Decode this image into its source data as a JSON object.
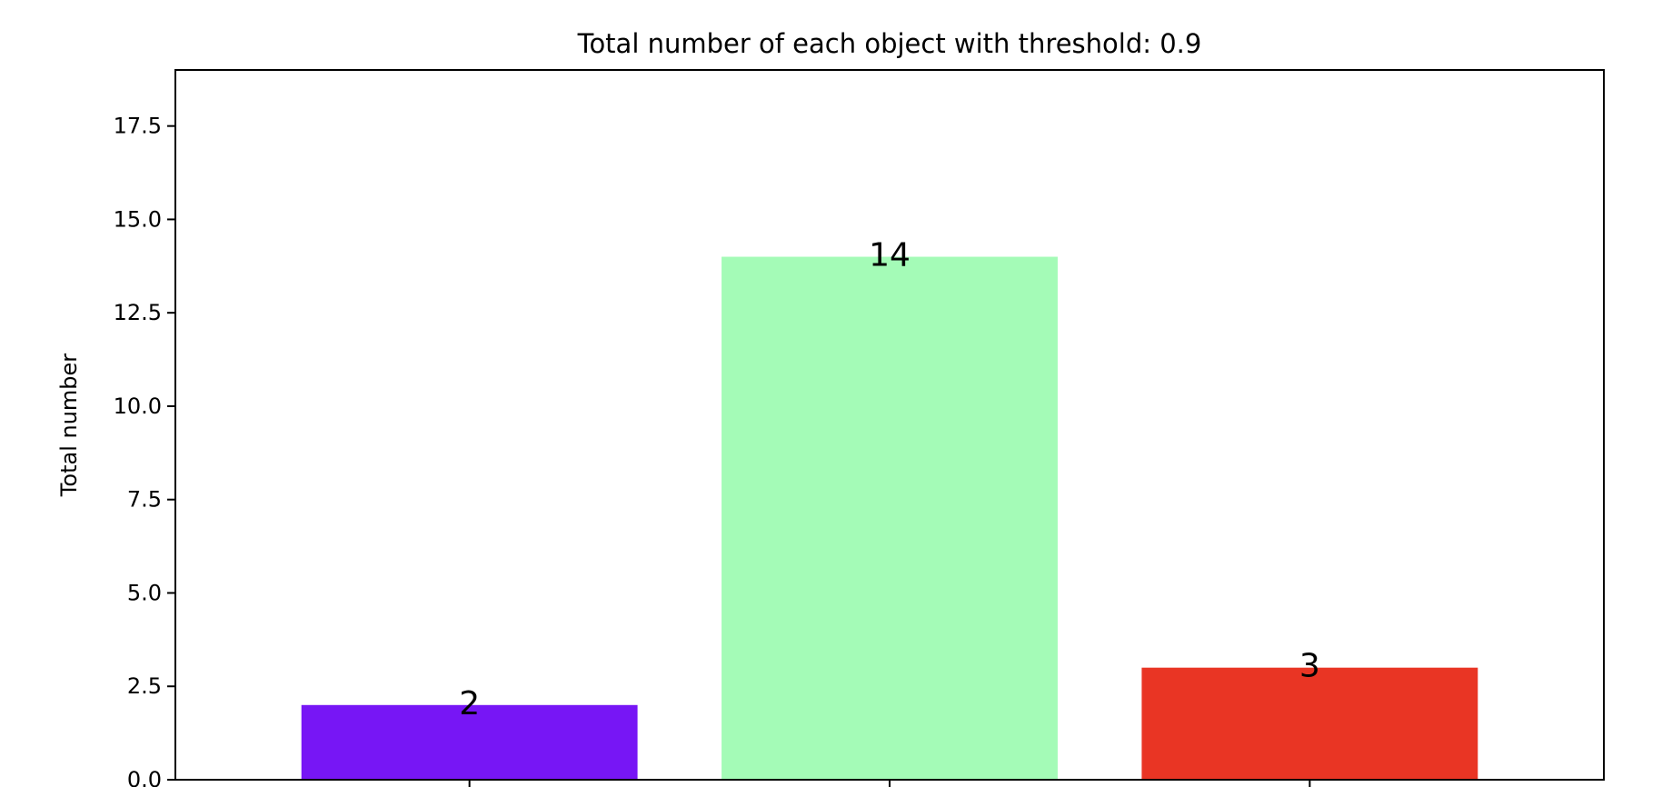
{
  "chart_data": {
    "type": "bar",
    "title": "Total number of each object with threshold: 0.9",
    "xlabel": "",
    "ylabel": "Total number",
    "categories": [
      "",
      "",
      ""
    ],
    "values": [
      2,
      14,
      3
    ],
    "data_labels": [
      "2",
      "14",
      "3"
    ],
    "colors": [
      "#7716f5",
      "#a4fbb7",
      "#e93524"
    ],
    "ylim": [
      0,
      19
    ],
    "yticks": [
      0.0,
      2.5,
      5.0,
      7.5,
      10.0,
      12.5,
      15.0,
      17.5
    ],
    "ytick_labels": [
      "0.0",
      "2.5",
      "5.0",
      "7.5",
      "10.0",
      "12.5",
      "15.0",
      "17.5"
    ],
    "grid": false,
    "legend": "none"
  }
}
